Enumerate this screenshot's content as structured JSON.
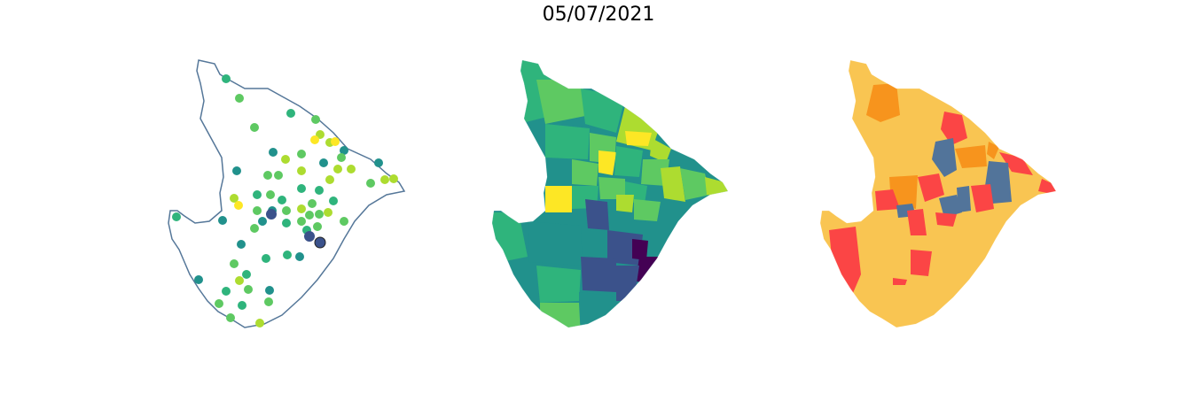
{
  "title": "05/07/2021",
  "colors": {
    "outline": "#557799",
    "viridis": [
      "#440154",
      "#3b528b",
      "#21918c",
      "#2fb47c",
      "#5ec962",
      "#addc30",
      "#fde725"
    ],
    "categories": [
      "#f9c552",
      "#f7941d",
      "#fb4545",
      "#52749a"
    ]
  },
  "maps": {
    "points": {
      "kind": "station-scatter"
    },
    "choropleth": {
      "kind": "municipality-viridis"
    },
    "categories": {
      "kind": "municipality-categorical"
    }
  }
}
